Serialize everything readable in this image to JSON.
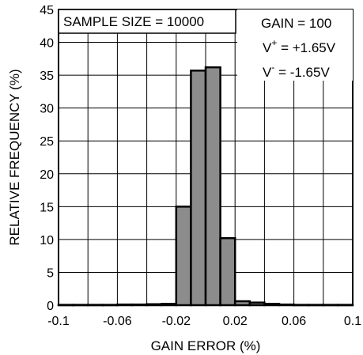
{
  "chart_data": {
    "type": "bar",
    "title": "",
    "xlabel": "GAIN ERROR (%)",
    "ylabel": "RELATIVE FREQUENCY (%)",
    "xlim": [
      -0.1,
      0.1
    ],
    "ylim": [
      0,
      45
    ],
    "x_ticks": [
      -0.1,
      -0.06,
      -0.02,
      0.02,
      0.06,
      0.1
    ],
    "x_tick_labels": [
      "-0.1",
      "-0.06",
      "-0.02",
      "0.02",
      "0.06",
      "0.1"
    ],
    "y_ticks": [
      0,
      5,
      10,
      15,
      20,
      25,
      30,
      35,
      40,
      45
    ],
    "y_tick_labels": [
      "0",
      "5",
      "10",
      "15",
      "20",
      "25",
      "30",
      "35",
      "40",
      "45"
    ],
    "grid": true,
    "bar_color": "#8c8c8c",
    "bins": [
      {
        "x0": -0.1,
        "x1": -0.09,
        "value": 0.05
      },
      {
        "x0": -0.09,
        "x1": -0.08,
        "value": 0.05
      },
      {
        "x0": -0.08,
        "x1": -0.07,
        "value": 0.05
      },
      {
        "x0": -0.07,
        "x1": -0.06,
        "value": 0.05
      },
      {
        "x0": -0.06,
        "x1": -0.05,
        "value": 0.1
      },
      {
        "x0": -0.05,
        "x1": -0.04,
        "value": 0.1
      },
      {
        "x0": -0.04,
        "x1": -0.03,
        "value": 0.15
      },
      {
        "x0": -0.03,
        "x1": -0.02,
        "value": 0.2
      },
      {
        "x0": -0.02,
        "x1": -0.01,
        "value": 15
      },
      {
        "x0": -0.01,
        "x1": 0.0,
        "value": 35.7
      },
      {
        "x0": 0.0,
        "x1": 0.01,
        "value": 36.2
      },
      {
        "x0": 0.01,
        "x1": 0.02,
        "value": 10.2
      },
      {
        "x0": 0.02,
        "x1": 0.03,
        "value": 0.6
      },
      {
        "x0": 0.03,
        "x1": 0.04,
        "value": 0.4
      },
      {
        "x0": 0.04,
        "x1": 0.05,
        "value": 0.2
      },
      {
        "x0": 0.05,
        "x1": 0.06,
        "value": 0.1
      },
      {
        "x0": 0.06,
        "x1": 0.07,
        "value": 0.05
      },
      {
        "x0": 0.07,
        "x1": 0.08,
        "value": 0.05
      },
      {
        "x0": 0.08,
        "x1": 0.09,
        "value": 0.05
      },
      {
        "x0": 0.09,
        "x1": 0.1,
        "value": 0.05
      }
    ],
    "annotations": {
      "sample_size": "SAMPLE SIZE = 10000",
      "gain": "GAIN = 100",
      "v_plus_prefix": "V",
      "v_plus_sup": "+",
      "v_plus_value": " = +1.65V",
      "v_minus_prefix": "V",
      "v_minus_sup": "-",
      "v_minus_value": " = -1.65V"
    }
  }
}
